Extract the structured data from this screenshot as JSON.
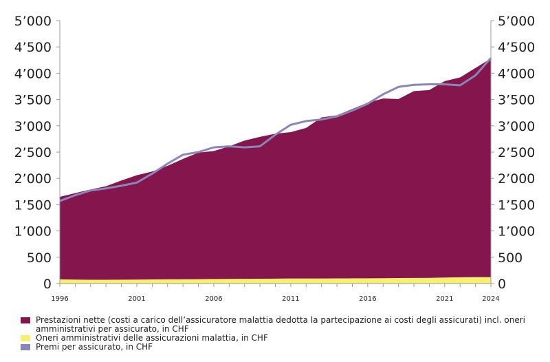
{
  "chart_data": {
    "type": "area",
    "x": [
      1996,
      1997,
      1998,
      1999,
      2000,
      2001,
      2002,
      2003,
      2004,
      2005,
      2006,
      2007,
      2008,
      2009,
      2010,
      2011,
      2012,
      2013,
      2014,
      2015,
      2016,
      2017,
      2018,
      2019,
      2020,
      2021,
      2022,
      2023,
      2024
    ],
    "x_tick_labels": [
      "1996",
      "2001",
      "2006",
      "2011",
      "2016",
      "2021",
      "2024"
    ],
    "y_tick_labels": [
      "0",
      "500",
      "1’000",
      "1’500",
      "2’000",
      "2’500",
      "3’000",
      "3’500",
      "4’000",
      "4’500",
      "5’000"
    ],
    "ylim": [
      0,
      5000
    ],
    "series": [
      {
        "name": "Oneri amministrativi delle assicurazioni malattia, in CHF",
        "kind": "area",
        "color": "#f7ef6e",
        "values": [
          80,
          75,
          72,
          72,
          74,
          76,
          78,
          80,
          82,
          84,
          86,
          88,
          90,
          92,
          94,
          96,
          96,
          97,
          98,
          99,
          100,
          102,
          104,
          106,
          108,
          115,
          120,
          122,
          122
        ]
      },
      {
        "name": "Prestazioni nette (costi a carico dell’assicuratore malattia dedotta la partecipazione ai costi degli assicurati) incl. oneri amministrativi per assicurato, in CHF",
        "kind": "area",
        "color": "#85154d",
        "values": [
          1650,
          1720,
          1790,
          1850,
          1960,
          2060,
          2130,
          2240,
          2370,
          2490,
          2520,
          2610,
          2720,
          2790,
          2850,
          2880,
          2960,
          3160,
          3200,
          3320,
          3440,
          3520,
          3510,
          3660,
          3680,
          3850,
          3920,
          4100,
          4280
        ]
      },
      {
        "name": "Premi per assicurato, in CHF",
        "kind": "line",
        "color": "#8c86b8",
        "values": [
          1570,
          1680,
          1770,
          1810,
          1860,
          1920,
          2090,
          2280,
          2450,
          2500,
          2590,
          2610,
          2590,
          2610,
          2830,
          3020,
          3090,
          3120,
          3180,
          3290,
          3420,
          3600,
          3740,
          3780,
          3790,
          3790,
          3770,
          3960,
          4290
        ]
      }
    ],
    "legend_position": "bottom"
  },
  "legend": [
    {
      "label": "Prestazioni nette (costi a carico dell’assicuratore malattia dedotta la partecipazione ai costi degli assicurati) incl. oneri amministrativi per assicurato, in CHF",
      "color": "#85154d"
    },
    {
      "label": "Oneri amministrativi delle assicurazioni malattia, in CHF",
      "color": "#f7ef6e"
    },
    {
      "label": "Premi per assicurato, in CHF",
      "color": "#8c86b8"
    }
  ]
}
